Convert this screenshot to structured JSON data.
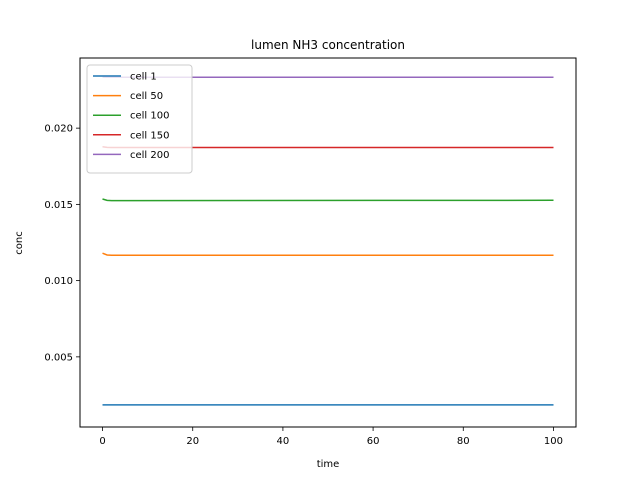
{
  "chart_data": {
    "type": "line",
    "title": "lumen NH3 concentration",
    "xlabel": "time",
    "ylabel": "conc",
    "xlim": [
      -5,
      105
    ],
    "ylim": [
      0.0004,
      0.0246
    ],
    "xticks": [
      0,
      20,
      40,
      60,
      80,
      100
    ],
    "xtick_labels": [
      "0",
      "20",
      "40",
      "60",
      "80",
      "100"
    ],
    "yticks": [
      0.005,
      0.01,
      0.015,
      0.02
    ],
    "ytick_labels": [
      "0.005",
      "0.010",
      "0.015",
      "0.020"
    ],
    "grid": false,
    "legend_position": "top-left",
    "series": [
      {
        "name": "cell 1",
        "color": "#1f77b4",
        "x": [
          0,
          1,
          2,
          100
        ],
        "y": [
          0.00185,
          0.00185,
          0.00185,
          0.00185
        ]
      },
      {
        "name": "cell 50",
        "color": "#ff7f0e",
        "x": [
          0,
          1,
          2,
          100
        ],
        "y": [
          0.0118,
          0.01168,
          0.01166,
          0.01166
        ]
      },
      {
        "name": "cell 100",
        "color": "#2ca02c",
        "x": [
          0,
          1,
          2,
          100
        ],
        "y": [
          0.01535,
          0.01526,
          0.01525,
          0.01527
        ]
      },
      {
        "name": "cell 150",
        "color": "#d62728",
        "x": [
          0,
          1,
          2,
          100
        ],
        "y": [
          0.01878,
          0.01874,
          0.01873,
          0.01873
        ]
      },
      {
        "name": "cell 200",
        "color": "#9467bd",
        "x": [
          0,
          1,
          2,
          100
        ],
        "y": [
          0.02335,
          0.02334,
          0.02334,
          0.02334
        ]
      }
    ]
  }
}
